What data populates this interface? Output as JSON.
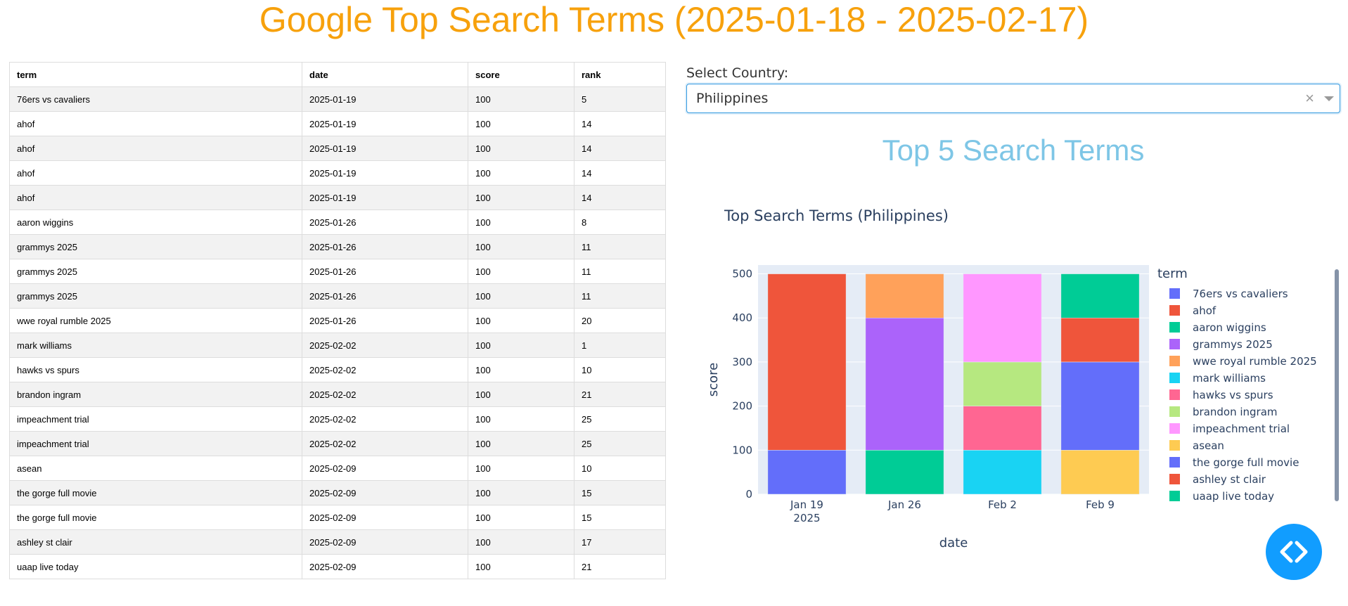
{
  "title": "Google Top Search Terms (2025-01-18 - 2025-02-17)",
  "table": {
    "columns": [
      "term",
      "date",
      "score",
      "rank"
    ],
    "rows": [
      [
        "76ers vs cavaliers",
        "2025-01-19",
        "100",
        "5"
      ],
      [
        "ahof",
        "2025-01-19",
        "100",
        "14"
      ],
      [
        "ahof",
        "2025-01-19",
        "100",
        "14"
      ],
      [
        "ahof",
        "2025-01-19",
        "100",
        "14"
      ],
      [
        "ahof",
        "2025-01-19",
        "100",
        "14"
      ],
      [
        "aaron wiggins",
        "2025-01-26",
        "100",
        "8"
      ],
      [
        "grammys 2025",
        "2025-01-26",
        "100",
        "11"
      ],
      [
        "grammys 2025",
        "2025-01-26",
        "100",
        "11"
      ],
      [
        "grammys 2025",
        "2025-01-26",
        "100",
        "11"
      ],
      [
        "wwe royal rumble 2025",
        "2025-01-26",
        "100",
        "20"
      ],
      [
        "mark williams",
        "2025-02-02",
        "100",
        "1"
      ],
      [
        "hawks vs spurs",
        "2025-02-02",
        "100",
        "10"
      ],
      [
        "brandon ingram",
        "2025-02-02",
        "100",
        "21"
      ],
      [
        "impeachment trial",
        "2025-02-02",
        "100",
        "25"
      ],
      [
        "impeachment trial",
        "2025-02-02",
        "100",
        "25"
      ],
      [
        "asean",
        "2025-02-09",
        "100",
        "10"
      ],
      [
        "the gorge full movie",
        "2025-02-09",
        "100",
        "15"
      ],
      [
        "the gorge full movie",
        "2025-02-09",
        "100",
        "15"
      ],
      [
        "ashley st clair",
        "2025-02-09",
        "100",
        "17"
      ],
      [
        "uaap live today",
        "2025-02-09",
        "100",
        "21"
      ]
    ]
  },
  "filter": {
    "label": "Select Country:",
    "value": "Philippines",
    "clear_symbol": "×"
  },
  "section_title": "Top 5 Search Terms",
  "chart_data": {
    "type": "bar",
    "stacked": true,
    "title": "Top Search Terms (Philippines)",
    "xlabel": "date",
    "ylabel": "score",
    "ylim": [
      0,
      520
    ],
    "yticks": [
      0,
      100,
      200,
      300,
      400,
      500
    ],
    "categories": [
      "Jan 19",
      "Jan 26",
      "Feb 2",
      "Feb 9"
    ],
    "category_sublabels": [
      "2025",
      "",
      "",
      ""
    ],
    "legend_title": "term",
    "legend_position": "right",
    "series": [
      {
        "name": "76ers vs cavaliers",
        "color": "#636efa",
        "values": [
          100,
          0,
          0,
          0
        ]
      },
      {
        "name": "ahof",
        "color": "#ef553b",
        "values": [
          400,
          0,
          0,
          0
        ]
      },
      {
        "name": "aaron wiggins",
        "color": "#00cc96",
        "values": [
          0,
          100,
          0,
          0
        ]
      },
      {
        "name": "grammys 2025",
        "color": "#ab63fa",
        "values": [
          0,
          300,
          0,
          0
        ]
      },
      {
        "name": "wwe royal rumble 2025",
        "color": "#ffa15a",
        "values": [
          0,
          100,
          0,
          0
        ]
      },
      {
        "name": "mark williams",
        "color": "#19d3f3",
        "values": [
          0,
          0,
          100,
          0
        ]
      },
      {
        "name": "hawks vs spurs",
        "color": "#ff6692",
        "values": [
          0,
          0,
          100,
          0
        ]
      },
      {
        "name": "brandon ingram",
        "color": "#b6e880",
        "values": [
          0,
          0,
          100,
          0
        ]
      },
      {
        "name": "impeachment trial",
        "color": "#ff97ff",
        "values": [
          0,
          0,
          200,
          0
        ]
      },
      {
        "name": "asean",
        "color": "#fecb52",
        "values": [
          0,
          0,
          0,
          100
        ]
      },
      {
        "name": "the gorge full movie",
        "color": "#636efa",
        "values": [
          0,
          0,
          0,
          200
        ]
      },
      {
        "name": "ashley st clair",
        "color": "#ef553b",
        "values": [
          0,
          0,
          0,
          100
        ]
      },
      {
        "name": "uaap live today",
        "color": "#00cc96",
        "values": [
          0,
          0,
          0,
          100
        ]
      }
    ]
  }
}
